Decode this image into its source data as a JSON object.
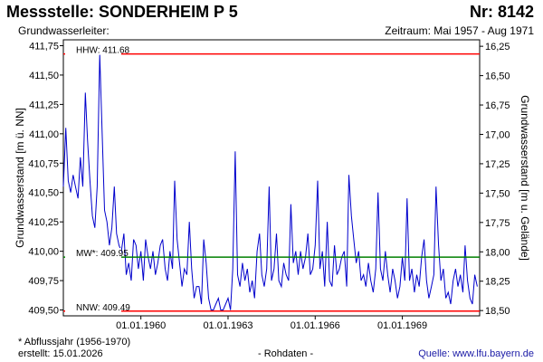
{
  "header": {
    "title": "Messstelle: SONDERHEIM P 5",
    "nr": "Nr: 8142",
    "aquifer": "Grundwasserleiter:",
    "period": "Zeitraum: Mai 1957 - Aug 1971"
  },
  "footer": {
    "footnote": "* Abflussjahr (1956-1970)",
    "created": "erstellt:  15.01.2026",
    "raw": "- Rohdaten -",
    "source": "Quelle:  www.lfu.bayern.de"
  },
  "chart_data": {
    "type": "line",
    "ylabel": "Grundwasserstand [m ü. NN]",
    "ylabel_right": "Grundwasserstand [m u. Gelände]",
    "xlim": [
      "1957-05-01",
      "1971-08-31"
    ],
    "ylim": [
      409.45,
      411.8
    ],
    "ylim_right": [
      18.545,
      16.195
    ],
    "grid": false,
    "x_ticks": [
      "01.01.1960",
      "01.01.1963",
      "01.01.1966",
      "01.01.1969"
    ],
    "y_ticks": [
      "411,75",
      "411,50",
      "411,25",
      "411,00",
      "410,75",
      "410,50",
      "410,25",
      "410,00",
      "409,75",
      "409,50"
    ],
    "y_tick_values": [
      411.75,
      411.5,
      411.25,
      411.0,
      410.75,
      410.5,
      410.25,
      410.0,
      409.75,
      409.5
    ],
    "y_right_ticks": [
      "16,25",
      "16,50",
      "16,75",
      "17,00",
      "17,25",
      "17,50",
      "17,75",
      "18,00",
      "18,25",
      "18,50"
    ],
    "y_right_tick_values": [
      16.25,
      16.5,
      16.75,
      17.0,
      17.25,
      17.5,
      17.75,
      18.0,
      18.25,
      18.5
    ],
    "reference_lines": [
      {
        "label": "HHW: 411.68",
        "value": 411.68,
        "color": "#ff0000"
      },
      {
        "label": "MW*: 409.95",
        "value": 409.95,
        "color": "#008000"
      },
      {
        "label": "NNW: 409.49",
        "value": 409.49,
        "color": "#ff0000"
      }
    ],
    "series": [
      {
        "color": "#0000cc",
        "x": [
          "1957-05-01",
          "1957-06-01",
          "1957-07-01",
          "1957-08-01",
          "1957-09-01",
          "1957-10-01",
          "1957-11-01",
          "1957-12-01",
          "1958-01-01",
          "1958-02-01",
          "1958-03-01",
          "1958-04-01",
          "1958-05-01",
          "1958-06-01",
          "1958-07-01",
          "1958-08-01",
          "1958-09-01",
          "1958-10-01",
          "1958-11-01",
          "1958-12-01",
          "1959-01-01",
          "1959-02-01",
          "1959-03-01",
          "1959-04-01",
          "1959-05-01",
          "1959-06-01",
          "1959-07-01",
          "1959-08-01",
          "1959-09-01",
          "1959-10-01",
          "1959-11-01",
          "1959-12-01",
          "1960-01-01",
          "1960-02-01",
          "1960-03-01",
          "1960-04-01",
          "1960-05-01",
          "1960-06-01",
          "1960-07-01",
          "1960-08-01",
          "1960-09-01",
          "1960-10-01",
          "1960-11-01",
          "1960-12-01",
          "1961-01-01",
          "1961-02-01",
          "1961-03-01",
          "1961-04-01",
          "1961-05-01",
          "1961-06-01",
          "1961-07-01",
          "1961-08-01",
          "1961-09-01",
          "1961-10-01",
          "1961-11-01",
          "1961-12-01",
          "1962-01-01",
          "1962-02-01",
          "1962-03-01",
          "1962-04-01",
          "1962-05-01",
          "1962-06-01",
          "1962-07-01",
          "1962-08-01",
          "1962-09-01",
          "1962-10-01",
          "1962-11-01",
          "1962-12-01",
          "1963-01-01",
          "1963-02-01",
          "1963-03-01",
          "1963-04-01",
          "1963-05-01",
          "1963-06-01",
          "1963-07-01",
          "1963-08-01",
          "1963-09-01",
          "1963-10-01",
          "1963-11-01",
          "1963-12-01",
          "1964-01-01",
          "1964-02-01",
          "1964-03-01",
          "1964-04-01",
          "1964-05-01",
          "1964-06-01",
          "1964-07-01",
          "1964-08-01",
          "1964-09-01",
          "1964-10-01",
          "1964-11-01",
          "1964-12-01",
          "1965-01-01",
          "1965-02-01",
          "1965-03-01",
          "1965-04-01",
          "1965-05-01",
          "1965-06-01",
          "1965-07-01",
          "1965-08-01",
          "1965-09-01",
          "1965-10-01",
          "1965-11-01",
          "1965-12-01",
          "1966-01-01",
          "1966-02-01",
          "1966-03-01",
          "1966-04-01",
          "1966-05-01",
          "1966-06-01",
          "1966-07-01",
          "1966-08-01",
          "1966-09-01",
          "1966-10-01",
          "1966-11-01",
          "1966-12-01",
          "1967-01-01",
          "1967-02-01",
          "1967-03-01",
          "1967-04-01",
          "1967-05-01",
          "1967-06-01",
          "1967-07-01",
          "1967-08-01",
          "1967-09-01",
          "1967-10-01",
          "1967-11-01",
          "1967-12-01",
          "1968-01-01",
          "1968-02-01",
          "1968-03-01",
          "1968-04-01",
          "1968-05-01",
          "1968-06-01",
          "1968-07-01",
          "1968-08-01",
          "1968-09-01",
          "1968-10-01",
          "1968-11-01",
          "1968-12-01",
          "1969-01-01",
          "1969-02-01",
          "1969-03-01",
          "1969-04-01",
          "1969-05-01",
          "1969-06-01",
          "1969-07-01",
          "1969-08-01",
          "1969-09-01",
          "1969-10-01",
          "1969-11-01",
          "1969-12-01",
          "1970-01-01",
          "1970-02-01",
          "1970-03-01",
          "1970-04-01",
          "1970-05-01",
          "1970-06-01",
          "1970-07-01",
          "1970-08-01",
          "1970-09-01",
          "1970-10-01",
          "1970-11-01",
          "1970-12-01",
          "1971-01-01",
          "1971-02-01",
          "1971-03-01",
          "1971-04-01",
          "1971-05-01",
          "1971-06-01",
          "1971-07-01",
          "1971-08-01"
        ],
        "y": [
          410.55,
          411.05,
          410.6,
          410.5,
          410.65,
          410.55,
          410.45,
          410.8,
          410.55,
          411.35,
          410.95,
          410.6,
          410.3,
          410.2,
          410.55,
          411.68,
          411.0,
          410.35,
          410.25,
          410.05,
          410.2,
          410.55,
          410.15,
          410.05,
          410.0,
          410.15,
          409.8,
          409.9,
          409.75,
          410.1,
          410.05,
          409.85,
          410.0,
          409.75,
          410.1,
          409.95,
          409.85,
          410.0,
          409.8,
          409.9,
          410.05,
          410.1,
          409.85,
          409.75,
          410.0,
          409.85,
          410.6,
          410.1,
          409.9,
          409.7,
          409.85,
          409.8,
          410.25,
          409.85,
          409.6,
          409.7,
          409.7,
          409.55,
          410.1,
          409.9,
          409.6,
          409.5,
          409.5,
          409.55,
          409.6,
          409.5,
          409.5,
          409.55,
          409.6,
          409.5,
          409.85,
          410.85,
          409.8,
          409.7,
          409.9,
          409.75,
          409.85,
          409.65,
          409.75,
          409.6,
          410.0,
          410.15,
          409.8,
          409.7,
          409.85,
          410.55,
          409.75,
          409.85,
          410.15,
          409.75,
          409.7,
          409.9,
          409.8,
          409.75,
          410.4,
          409.9,
          410.0,
          409.8,
          410.0,
          409.85,
          409.95,
          410.15,
          409.8,
          409.85,
          410.05,
          410.6,
          409.85,
          410.0,
          409.7,
          410.25,
          409.75,
          409.7,
          410.05,
          409.8,
          409.85,
          409.95,
          410.0,
          409.7,
          410.65,
          410.3,
          410.1,
          409.9,
          410.0,
          409.75,
          409.8,
          409.7,
          409.9,
          409.75,
          409.65,
          409.85,
          410.5,
          409.85,
          409.75,
          410.0,
          409.8,
          409.65,
          409.85,
          409.75,
          409.6,
          409.7,
          409.95,
          409.75,
          410.45,
          409.75,
          409.85,
          409.65,
          409.8,
          409.7,
          409.95,
          410.1,
          409.75,
          409.6,
          409.7,
          409.8,
          410.55,
          410.05,
          409.75,
          409.85,
          409.6,
          409.65,
          409.55,
          409.75,
          409.85,
          409.7,
          409.8,
          409.65,
          410.05,
          409.75,
          409.6,
          409.55,
          409.8,
          409.7
        ]
      }
    ]
  }
}
